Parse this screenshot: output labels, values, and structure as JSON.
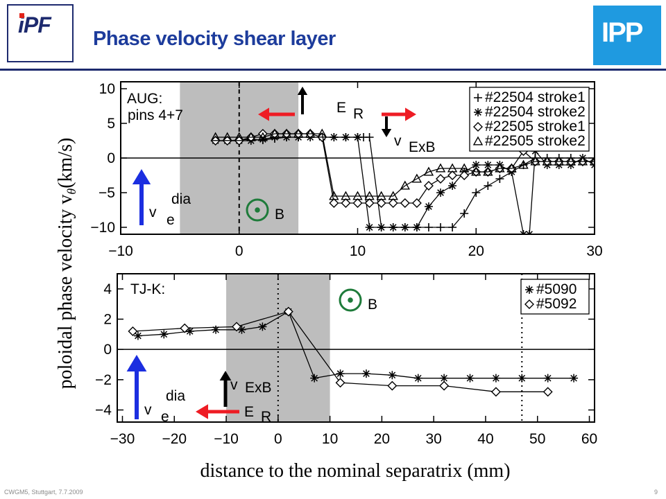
{
  "slide": {
    "title": "Phase velocity shear layer",
    "logo_left": "iPF",
    "logo_right": "IPP",
    "footer_left": "CWGM5, Stuttgart, 7.7.2009",
    "page_number": "9"
  },
  "chart_data": [
    {
      "type": "line",
      "panel": "top",
      "annotation_label": "AUG:",
      "annotation_sublabel": "pins 4+7",
      "xlim": [
        -10,
        30
      ],
      "ylim": [
        -11,
        11
      ],
      "xticks": [
        -10,
        0,
        10,
        20,
        30
      ],
      "yticks": [
        10,
        5,
        0,
        -5,
        -10
      ],
      "shaded_region": [
        -5,
        5
      ],
      "dashed_vline": 0,
      "grid": false,
      "legend_position": "top-right",
      "series": [
        {
          "name": "#22504 stroke1",
          "marker": "plus",
          "x": [
            -2,
            -1,
            0,
            1,
            2,
            3,
            4,
            5,
            6,
            7,
            8,
            9,
            10,
            10.5,
            11,
            12,
            13,
            14,
            15,
            16,
            17,
            18,
            19,
            20,
            21,
            22,
            23,
            24,
            25,
            26,
            27,
            28
          ],
          "y": [
            2.5,
            2.5,
            2.6,
            2.7,
            2.6,
            2.8,
            3.0,
            3.0,
            3.0,
            3.0,
            3.0,
            3.0,
            3.0,
            3.0,
            3.0,
            -10,
            -10,
            -10,
            -10,
            -10,
            -10,
            -10,
            -8,
            -5,
            -4,
            -3,
            -2,
            -1,
            0,
            0,
            0,
            0
          ]
        },
        {
          "name": "#22504 stroke2",
          "marker": "asterisk",
          "x": [
            -2,
            -1,
            0,
            1,
            2,
            3,
            4,
            5,
            6,
            7,
            8,
            9,
            10,
            11,
            12,
            13,
            14,
            15,
            16,
            17,
            18,
            19,
            20,
            21,
            22,
            23,
            24,
            24.5,
            25,
            26,
            27,
            28,
            29,
            30
          ],
          "y": [
            2.5,
            2.5,
            2.5,
            2.5,
            2.7,
            3.0,
            3.0,
            3.0,
            3.0,
            3.0,
            3.0,
            3.0,
            3.0,
            -10,
            -10,
            -10,
            -10,
            -10,
            -7,
            -5,
            -4,
            -2,
            -1,
            -1,
            -1,
            -2,
            -11,
            -11,
            1,
            -1,
            -1,
            -1,
            0,
            -1
          ]
        },
        {
          "name": "#22505 stroke1",
          "marker": "diamond",
          "x": [
            -2,
            -1,
            0,
            1,
            2,
            3,
            4,
            5,
            6,
            7,
            8,
            9,
            10,
            11,
            12,
            13,
            14,
            15,
            16,
            17,
            18,
            19,
            20,
            21,
            22,
            23,
            24,
            25,
            26,
            27,
            28,
            29,
            30
          ],
          "y": [
            2.5,
            2.5,
            2.5,
            3.0,
            3.5,
            3.5,
            3.5,
            3.5,
            3.5,
            3.0,
            -6.5,
            -6.5,
            -6.5,
            -6.5,
            -6.5,
            -6.5,
            -6.5,
            -6.5,
            -4,
            -3,
            -2.5,
            -2.5,
            -2,
            -2,
            -1.5,
            -1.5,
            1.0,
            -0.5,
            -0.5,
            -0.5,
            -0.5,
            -0.5,
            -0.5
          ]
        },
        {
          "name": "#22505 stroke2",
          "marker": "triangle",
          "x": [
            -2,
            -1,
            0,
            1,
            2,
            3,
            4,
            5,
            6,
            7,
            8,
            9,
            10,
            11,
            12,
            13,
            14,
            15,
            16,
            17,
            18,
            19,
            20,
            21,
            22,
            23,
            24,
            25,
            26,
            27,
            28,
            29,
            30
          ],
          "y": [
            3.0,
            3.0,
            3.0,
            3.0,
            3.0,
            3.5,
            3.5,
            3.5,
            3.5,
            3.5,
            -5.5,
            -5.5,
            -5.5,
            -5.5,
            -5.5,
            -5.5,
            -4,
            -3,
            -2,
            -1.5,
            -1.5,
            -1.5,
            -2,
            -2,
            -1.5,
            -1.5,
            -1,
            -0.5,
            -0.5,
            -0.5,
            -0.5,
            -0.5,
            -0.5
          ]
        }
      ],
      "annotations": {
        "er_label": "E",
        "er_sub": "R",
        "vexb_label": "v",
        "vexb_sub": "ExB",
        "vdia_label": "v",
        "vdia_sub": "e",
        "vdia_sup": "dia",
        "b_label": "B"
      }
    },
    {
      "type": "line",
      "panel": "bottom",
      "annotation_label": "TJ-K:",
      "xlim": [
        -31,
        61
      ],
      "ylim": [
        -4.8,
        5
      ],
      "xticks": [
        -30,
        -20,
        -10,
        0,
        10,
        20,
        30,
        40,
        50,
        60
      ],
      "yticks": [
        4,
        2,
        0,
        -2,
        -4
      ],
      "shaded_region": [
        -10,
        10
      ],
      "dotted_vlines": [
        0,
        47
      ],
      "grid": false,
      "legend_position": "top-right",
      "series": [
        {
          "name": "#5090",
          "marker": "asterisk",
          "x": [
            -27,
            -22,
            -17,
            -12,
            -7,
            -3,
            2,
            7,
            12,
            17,
            22,
            27,
            32,
            37,
            42,
            47,
            52,
            57
          ],
          "y": [
            0.9,
            1.0,
            1.2,
            1.3,
            1.3,
            1.5,
            2.5,
            -1.9,
            -1.6,
            -1.6,
            -1.7,
            -1.9,
            -1.9,
            -1.9,
            -1.9,
            -1.9,
            -1.9,
            -1.9
          ]
        },
        {
          "name": "#5092",
          "marker": "diamond",
          "x": [
            -28,
            -18,
            -8,
            2,
            12,
            22,
            32,
            42,
            52
          ],
          "y": [
            1.2,
            1.4,
            1.5,
            2.5,
            -2.2,
            -2.4,
            -2.4,
            -2.8,
            -2.8
          ]
        }
      ],
      "annotations": {
        "er_label": "E",
        "er_sub": "R",
        "vexb_label": "v",
        "vexb_sub": "ExB",
        "vdia_label": "v",
        "vdia_sub": "e",
        "vdia_sup": "dia",
        "b_label": "B"
      }
    }
  ],
  "axis_labels": {
    "ylabel_main": "poloidal phase velocity v",
    "ylabel_sub": "θ",
    "ylabel_unit": "(km/s)",
    "xlabel": "distance to the nominal separatrix (mm)"
  },
  "colors": {
    "title": "#1d3c9c",
    "shade": "#bdbdbd",
    "er_red": "#ee1c24",
    "vdia_blue": "#1b2ee0",
    "b_green": "#1e7b3a",
    "ipp_blue": "#1f9ae0"
  }
}
